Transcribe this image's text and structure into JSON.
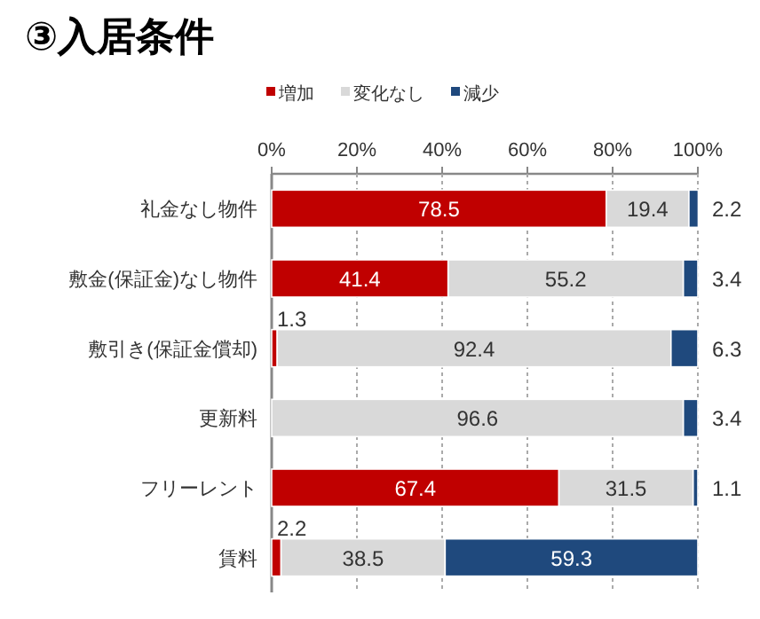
{
  "chart_data": {
    "type": "bar",
    "orientation": "horizontal",
    "stacked": true,
    "title": "③入居条件",
    "categories": [
      "礼金なし物件",
      "敷金(保証金)なし物件",
      "敷引き(保証金償却)",
      "更新料",
      "フリーレント",
      "賃料"
    ],
    "series": [
      {
        "name": "増加",
        "color": "#c00000",
        "values": [
          78.5,
          41.4,
          1.3,
          null,
          67.4,
          2.2
        ],
        "value_labels": [
          "78.5",
          "41.4",
          "1.3",
          null,
          "67.4",
          "2.2"
        ]
      },
      {
        "name": "変化なし",
        "color": "#d9d9d9",
        "values": [
          19.4,
          55.2,
          92.4,
          96.6,
          31.5,
          38.5
        ],
        "value_labels": [
          "19.4",
          "55.2",
          "92.4",
          "96.6",
          "31.5",
          "38.5"
        ]
      },
      {
        "name": "減少",
        "color": "#1f497d",
        "values": [
          2.2,
          3.4,
          6.3,
          3.4,
          1.1,
          59.3
        ],
        "value_labels": [
          "2.2",
          "3.4",
          "6.3",
          "3.4",
          "1.1",
          "59.3"
        ]
      }
    ],
    "xlim": [
      0,
      100
    ],
    "xticks": [
      {
        "value": 0,
        "label": "0%"
      },
      {
        "value": 20,
        "label": "20%"
      },
      {
        "value": 40,
        "label": "40%"
      },
      {
        "value": 60,
        "label": "60%"
      },
      {
        "value": 80,
        "label": "80%"
      },
      {
        "value": 100,
        "label": "100%"
      }
    ],
    "grid": "x",
    "legend": "top"
  }
}
